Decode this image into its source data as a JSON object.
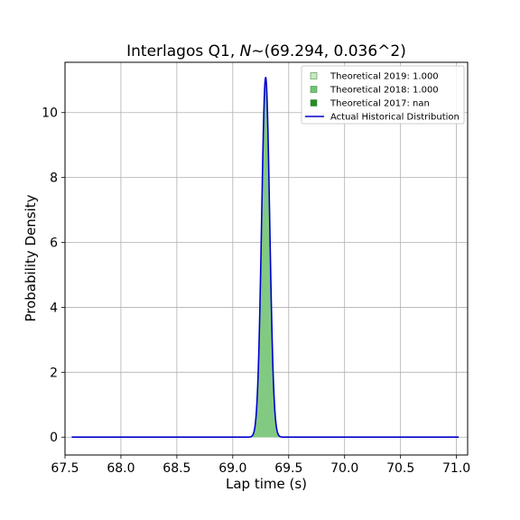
{
  "chart_data": {
    "type": "area",
    "title_prefix": "Interlagos Q1, ",
    "title_math_symbol": "N",
    "title_suffix": "∼(69.294, 0.036^2)",
    "xlabel": "Lap time (s)",
    "ylabel": "Probability Density",
    "xlim": [
      67.5,
      71.1
    ],
    "ylim": [
      -0.55,
      11.55
    ],
    "xticks": [
      67.5,
      68.0,
      68.5,
      69.0,
      69.5,
      70.0,
      70.5,
      71.0
    ],
    "xtick_labels": [
      "67.5",
      "68.0",
      "68.5",
      "69.0",
      "69.5",
      "70.0",
      "70.5",
      "71.0"
    ],
    "yticks": [
      0,
      2,
      4,
      6,
      8,
      10
    ],
    "ytick_labels": [
      "0",
      "2",
      "4",
      "6",
      "8",
      "10"
    ],
    "grid": true,
    "legend_position": "upper right",
    "x_range": [
      67.56,
      71.02
    ],
    "series": [
      {
        "name": "Theoretical 2019: 1.000",
        "kind": "filled-area",
        "color": "#c7e9c0",
        "mean": 69.294,
        "std": 0.036
      },
      {
        "name": "Theoretical 2018: 1.000",
        "kind": "filled-area",
        "color": "#74c476",
        "mean": 69.294,
        "std": 0.036
      },
      {
        "name": "Theoretical 2017: nan",
        "kind": "filled-area",
        "color": "#238b22",
        "mean": null,
        "std": null
      },
      {
        "name": "Actual Historical Distribution",
        "kind": "line",
        "color": "#0000cc",
        "mean": 69.294,
        "std": 0.036
      }
    ]
  }
}
